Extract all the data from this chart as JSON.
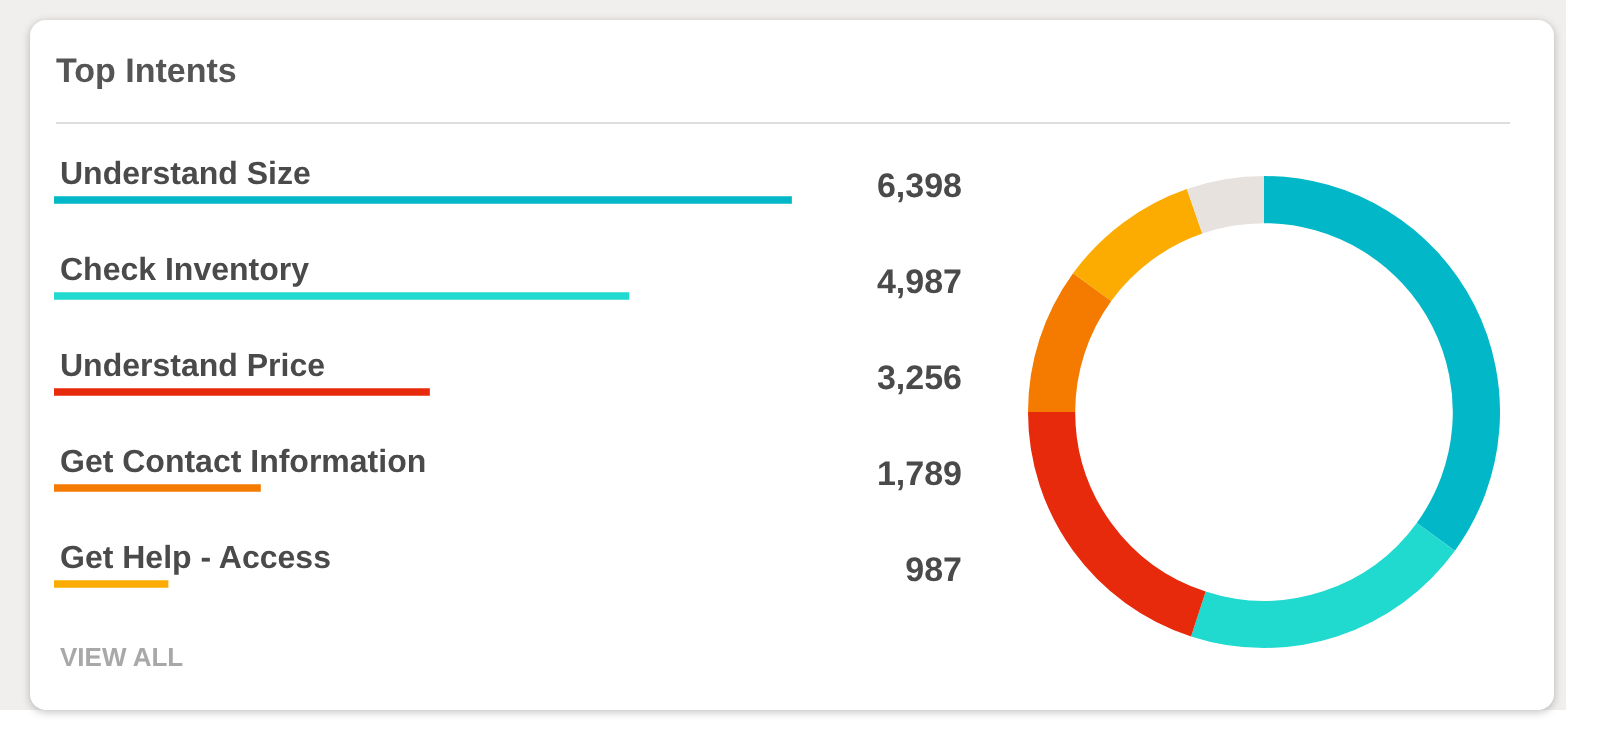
{
  "chart_data": [
    {
      "type": "bar",
      "title": "Top Intents",
      "orientation": "horizontal",
      "categories": [
        "Understand Size",
        "Check Inventory",
        "Understand Price",
        "Get Contact Information",
        "Get Help - Access"
      ],
      "values": [
        6398,
        4987,
        3256,
        1789,
        987
      ],
      "colors": [
        "#02b8c8",
        "#20d9cf",
        "#e82a0c",
        "#f57a00",
        "#fcab00"
      ],
      "data_labels": true,
      "value_labels": [
        "6,398",
        "4,987",
        "3,256",
        "1,789",
        "987"
      ],
      "annotations": [
        "VIEW ALL"
      ]
    },
    {
      "type": "donut",
      "categories": [
        null,
        null,
        null,
        null,
        null,
        null
      ],
      "values": [
        35,
        20,
        20,
        10,
        9.7,
        5.3
      ],
      "colors": [
        "#02b8c8",
        "#20d9cf",
        "#e82a0c",
        "#f57a00",
        "#fcab00",
        "#e8e2df"
      ]
    }
  ]
}
